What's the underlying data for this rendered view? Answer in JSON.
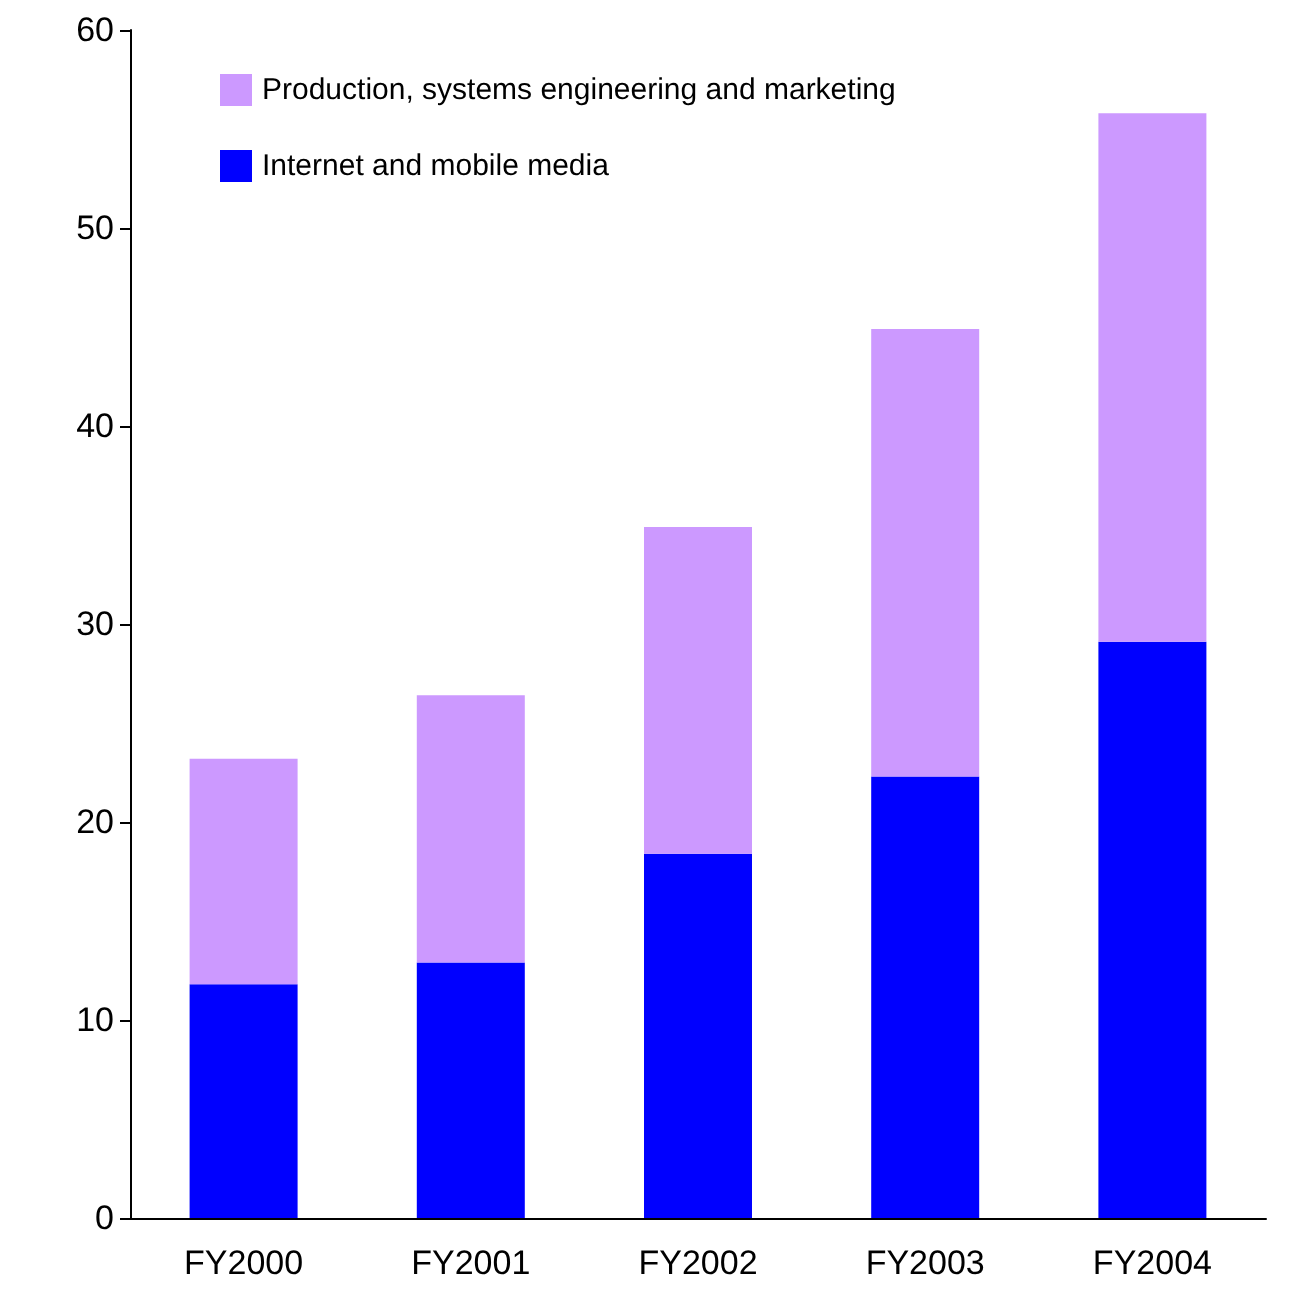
{
  "chart_data": {
    "type": "bar",
    "stacked": true,
    "categories": [
      "FY2000",
      "FY2001",
      "FY2002",
      "FY2003",
      "FY2004"
    ],
    "series": [
      {
        "name": "Internet and mobile media",
        "color": "#0000ff",
        "values": [
          11.8,
          12.9,
          18.4,
          22.3,
          29.1
        ]
      },
      {
        "name": "Production, systems engineering and marketing",
        "color": "#cc99ff",
        "values": [
          11.4,
          13.5,
          16.5,
          22.6,
          26.7
        ]
      }
    ],
    "ylim": [
      0,
      60
    ],
    "yticks": [
      0,
      10,
      20,
      30,
      40,
      50,
      60
    ],
    "grid": false,
    "legend": "top left"
  }
}
